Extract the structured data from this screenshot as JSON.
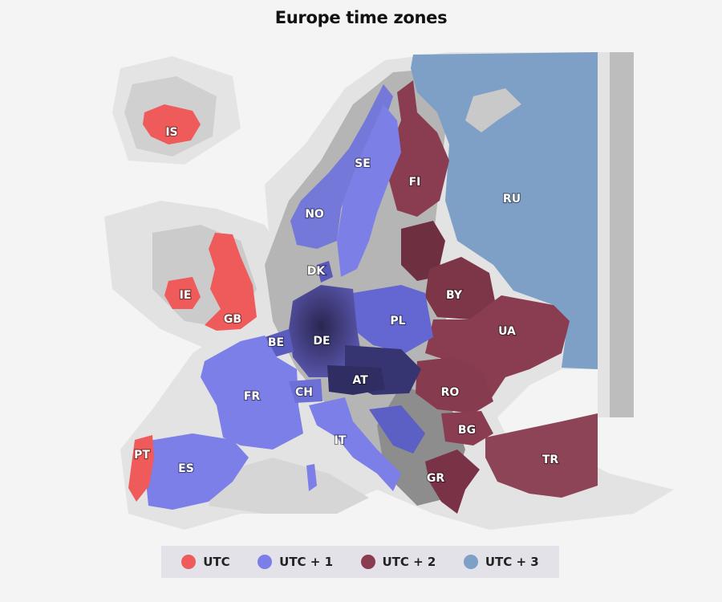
{
  "title": "Europe time zones",
  "zones": [
    {
      "id": "utc",
      "label": "UTC",
      "color": "#ef5a5a"
    },
    {
      "id": "utc1",
      "label": "UTC + 1",
      "color": "#7b7ee8"
    },
    {
      "id": "utc2",
      "label": "UTC + 2",
      "color": "#8a3d50"
    },
    {
      "id": "utc3",
      "label": "UTC + 3",
      "color": "#7e9fc6"
    }
  ],
  "countries": [
    {
      "code": "IS",
      "zone": "utc"
    },
    {
      "code": "IE",
      "zone": "utc"
    },
    {
      "code": "GB",
      "zone": "utc"
    },
    {
      "code": "PT",
      "zone": "utc"
    },
    {
      "code": "NO",
      "zone": "utc1"
    },
    {
      "code": "SE",
      "zone": "utc1"
    },
    {
      "code": "DK",
      "zone": "utc1"
    },
    {
      "code": "DE",
      "zone": "utc1"
    },
    {
      "code": "PL",
      "zone": "utc1"
    },
    {
      "code": "BE",
      "zone": "utc1"
    },
    {
      "code": "FR",
      "zone": "utc1"
    },
    {
      "code": "CH",
      "zone": "utc1"
    },
    {
      "code": "AT",
      "zone": "utc1"
    },
    {
      "code": "IT",
      "zone": "utc1"
    },
    {
      "code": "ES",
      "zone": "utc1"
    },
    {
      "code": "FI",
      "zone": "utc2"
    },
    {
      "code": "BY",
      "zone": "utc2"
    },
    {
      "code": "UA",
      "zone": "utc2"
    },
    {
      "code": "RO",
      "zone": "utc2"
    },
    {
      "code": "BG",
      "zone": "utc2"
    },
    {
      "code": "GR",
      "zone": "utc2"
    },
    {
      "code": "TR",
      "zone": "utc2"
    },
    {
      "code": "RU",
      "zone": "utc3"
    }
  ]
}
